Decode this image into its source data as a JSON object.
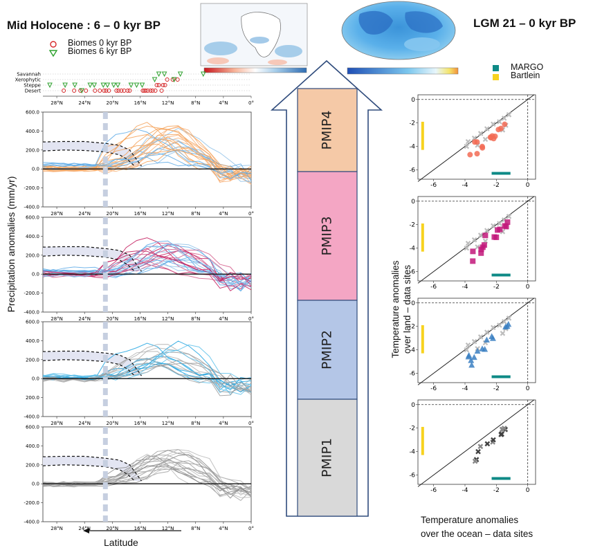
{
  "titles": {
    "mid_holocene": "Mid Holocene : 6 – 0 kyr BP",
    "lgm": "LGM 21 – 0 kyr BP"
  },
  "labels": {
    "precip_ylabel": "Precipitation anomalies (mm/yr)",
    "latitude": "Latitude",
    "temp_land_line1": "Temperature anomalies",
    "temp_land_line2": "over land – data sites",
    "temp_ocean_line1": "Temperature anomalies",
    "temp_ocean_line2": "over the ocean – data sites"
  },
  "phases": [
    {
      "name": "PMIP4",
      "color": "#f5c9a7"
    },
    {
      "name": "PMIP3",
      "color": "#f4a6c4"
    },
    {
      "name": "PMIP2",
      "color": "#b4c6e7"
    },
    {
      "name": "PMIP1",
      "color": "#d9d9d9"
    }
  ],
  "biome_legend": {
    "b0": "Biomes 0 kyr BP",
    "b6": "Biomes 6 kyr BP"
  },
  "lgm_legend": {
    "margo": "MARGO",
    "bartlein": "Bartlein",
    "margo_color": "#0e8a86",
    "bartlein_color": "#f7d21e"
  },
  "chart_data": [
    {
      "type": "scatter",
      "id": "biomes",
      "categories": [
        "Savannah",
        "Xerophytic",
        "Steppe",
        "Desert"
      ],
      "x_ticks": [
        "28°N",
        "24°N",
        "20°N",
        "16°N",
        "12°N",
        "8°N",
        "4°N",
        "0°"
      ],
      "series": [
        {
          "name": "Biomes 0 kyr BP",
          "color": "#d62728",
          "points": [
            [
              27,
              0
            ],
            [
              25.5,
              0
            ],
            [
              24.6,
              0
            ],
            [
              23.8,
              0
            ],
            [
              22.5,
              0
            ],
            [
              21.8,
              0
            ],
            [
              21.2,
              0
            ],
            [
              20.9,
              0
            ],
            [
              20.5,
              0
            ],
            [
              19.4,
              0
            ],
            [
              19.1,
              0
            ],
            [
              18.7,
              0
            ],
            [
              18.3,
              0
            ],
            [
              17.8,
              0
            ],
            [
              17.5,
              0
            ],
            [
              15.6,
              0
            ],
            [
              15.4,
              0
            ],
            [
              15.2,
              0
            ],
            [
              14.9,
              0
            ],
            [
              14.5,
              0
            ],
            [
              14.2,
              0
            ],
            [
              13.8,
              0
            ],
            [
              13.6,
              1
            ],
            [
              13.3,
              1
            ],
            [
              12.9,
              0
            ],
            [
              12.7,
              1
            ],
            [
              12.4,
              1
            ],
            [
              12.1,
              2
            ],
            [
              11.3,
              2
            ],
            [
              10.6,
              2
            ]
          ]
        },
        {
          "name": "Biomes 6 kyr BP",
          "color": "#2ca02c",
          "points": [
            [
              29,
              1
            ],
            [
              26.8,
              1
            ],
            [
              25.4,
              1
            ],
            [
              24.4,
              0
            ],
            [
              23.2,
              1
            ],
            [
              22.6,
              1
            ],
            [
              21.3,
              1
            ],
            [
              20.7,
              1
            ],
            [
              19.8,
              1
            ],
            [
              19.2,
              1
            ],
            [
              17.3,
              1
            ],
            [
              16.5,
              1
            ],
            [
              15.7,
              1
            ],
            [
              13.9,
              2
            ],
            [
              13.3,
              3
            ],
            [
              12.5,
              3
            ],
            [
              11.1,
              2
            ],
            [
              10.2,
              3
            ],
            [
              6.9,
              3
            ]
          ]
        }
      ]
    },
    {
      "type": "line",
      "id": "precip",
      "x_ticks": [
        "28°N",
        "24°N",
        "20°N",
        "16°N",
        "12°N",
        "8°N",
        "4°N",
        "0°"
      ],
      "y_ticks": [
        "600.0",
        "400.0",
        "200.0",
        "0.0",
        "-200.0",
        "-400.0"
      ],
      "ylim": [
        -400,
        600
      ],
      "panels": [
        {
          "name": "PMIP4",
          "colors": [
            "#f4a259",
            "#f7b27a",
            "#5aa9e6",
            "#8fc1e8",
            "#f4a259"
          ],
          "count": 26
        },
        {
          "name": "PMIP3",
          "colors": [
            "#c2185b",
            "#d45c8a",
            "#5aa9e6",
            "#8fc1e8"
          ],
          "count": 24
        },
        {
          "name": "PMIP2",
          "colors": [
            "#1fa3e0",
            "#5cc0ea",
            "#b0b0b0",
            "#9a9a9a"
          ],
          "count": 20
        },
        {
          "name": "PMIP1",
          "colors": [
            "#a0a0a0",
            "#8a8a8a",
            "#b8b8b8"
          ],
          "count": 18
        }
      ],
      "data_band": {
        "upper": [
          [
            30,
            285
          ],
          [
            27,
            290
          ],
          [
            24,
            290
          ],
          [
            21,
            270
          ],
          [
            19,
            250
          ],
          [
            17.5,
            200
          ],
          [
            16.5,
            100
          ],
          [
            15.8,
            30
          ]
        ],
        "lower": [
          [
            30,
            190
          ],
          [
            27,
            200
          ],
          [
            24,
            195
          ],
          [
            21,
            180
          ],
          [
            19,
            150
          ],
          [
            17.8,
            100
          ],
          [
            16.8,
            30
          ]
        ]
      }
    },
    {
      "type": "scatter",
      "id": "lgm",
      "xlim": [
        -7,
        0.5
      ],
      "ylim": [
        -6.8,
        0.4
      ],
      "x_ticks": [
        "-6",
        "-4",
        "-2",
        "0"
      ],
      "y_ticks": [
        "0",
        "-2",
        "-4",
        "-6"
      ],
      "panels": [
        {
          "name": "PMIP4",
          "color": "#f26b55",
          "secondary": "#c86bc6"
        },
        {
          "name": "PMIP3",
          "color": "#c2187a",
          "secondary": "#c2187a"
        },
        {
          "name": "PMIP2",
          "color": "#3a7fc2",
          "secondary": "#3a7fc2"
        },
        {
          "name": "PMIP1",
          "color": "#404040",
          "secondary": "#888888"
        }
      ]
    }
  ]
}
